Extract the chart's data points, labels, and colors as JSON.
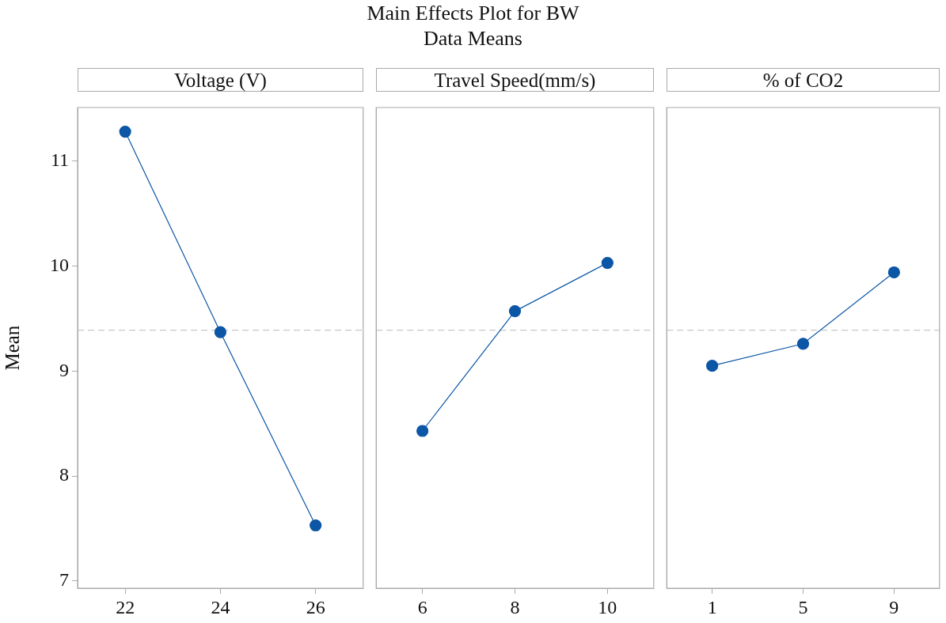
{
  "chart_data": [
    {
      "type": "other",
      "title": "Main Effects Plot for BW",
      "subtitle": "Data Means"
    },
    {
      "type": "line",
      "xlabel": "Voltage (V)",
      "ylabel": "Mean",
      "categories": [
        "22",
        "24",
        "26"
      ],
      "series": [
        {
          "color": "#0b56a5",
          "values": [
            11.28,
            9.37,
            7.53
          ]
        }
      ],
      "ylim": [
        6.93,
        11.51
      ],
      "yticks": [
        7,
        8,
        9,
        10,
        11
      ],
      "ref_lines": [
        {
          "axis": "y",
          "value": 9.39,
          "color": "#c8c8c8",
          "line_style": "dashed"
        }
      ],
      "marker": "circle",
      "line_style": "solid",
      "grid": false,
      "legend": false
    },
    {
      "type": "line",
      "xlabel": "Travel Speed(mm/s)",
      "categories": [
        "6",
        "8",
        "10"
      ],
      "series": [
        {
          "color": "#0b56a5",
          "values": [
            8.43,
            9.57,
            10.03
          ]
        }
      ],
      "ylim": [
        6.93,
        11.51
      ],
      "yticks": [
        7,
        8,
        9,
        10,
        11
      ],
      "tick_labels": "x",
      "ref_lines": [
        {
          "axis": "y",
          "value": 9.39,
          "color": "#c8c8c8",
          "line_style": "dashed"
        }
      ],
      "marker": "circle",
      "line_style": "solid",
      "grid": false,
      "legend": false
    },
    {
      "type": "line",
      "xlabel": "% of CO2",
      "categories": [
        "1",
        "5",
        "9"
      ],
      "series": [
        {
          "color": "#0b56a5",
          "values": [
            9.05,
            9.26,
            9.94
          ]
        }
      ],
      "ylim": [
        6.93,
        11.51
      ],
      "yticks": [
        7,
        8,
        9,
        10,
        11
      ],
      "tick_labels": "x",
      "ref_lines": [
        {
          "axis": "y",
          "value": 9.39,
          "color": "#c8c8c8",
          "line_style": "dashed"
        }
      ],
      "marker": "circle",
      "line_style": "solid",
      "grid": false,
      "legend": false
    }
  ]
}
